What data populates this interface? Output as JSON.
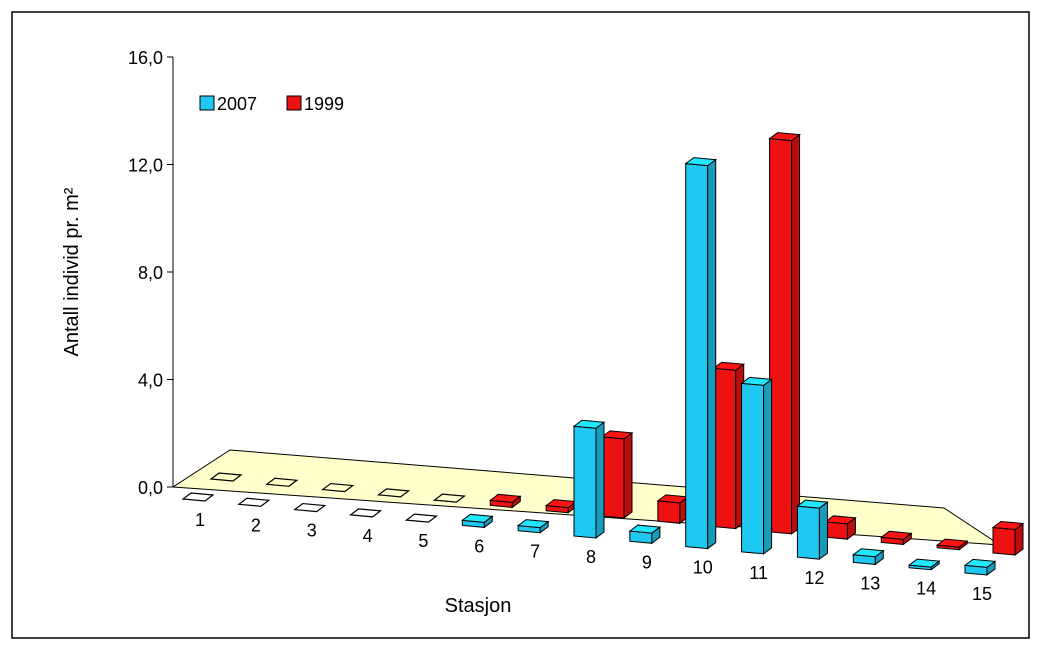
{
  "chart_data": {
    "type": "bar",
    "projection": "3d",
    "categories": [
      "1",
      "2",
      "3",
      "4",
      "5",
      "6",
      "7",
      "8",
      "9",
      "10",
      "11",
      "12",
      "13",
      "14",
      "15"
    ],
    "series": [
      {
        "name": "2007",
        "values": [
          0,
          0,
          0,
          0,
          0,
          0.2,
          0.2,
          4.3,
          0.4,
          15.0,
          6.6,
          2.0,
          0.3,
          0.1,
          0.3
        ]
      },
      {
        "name": "1999",
        "values": [
          0,
          0,
          0,
          0,
          0,
          0.2,
          0.2,
          3.1,
          0.8,
          6.2,
          15.4,
          0.6,
          0.2,
          0.1,
          1.0
        ]
      }
    ],
    "xlabel": "Stasjon",
    "ylabel": "Antall individ pr. m²",
    "ylim": [
      0,
      16
    ],
    "yticks": [
      "0,0",
      "4,0",
      "8,0",
      "12,0",
      "16,0"
    ],
    "legend_position": "top-left",
    "grid": false,
    "colors": {
      "2007": "#1ec8f0",
      "1999": "#ee1111",
      "floor": "#ffffcc"
    }
  }
}
